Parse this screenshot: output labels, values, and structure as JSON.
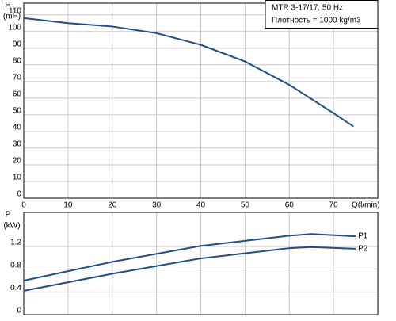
{
  "chart_data": [
    {
      "type": "line",
      "ylabel": [
        "H",
        "(mH)"
      ],
      "xlabel": "Q(l/min)",
      "annotations": [
        "MTR 3-17/17, 50 Hz",
        "Плотность = 1000 kg/m3"
      ],
      "x": [
        0,
        10,
        20,
        30,
        40,
        50,
        60,
        70,
        74.5
      ],
      "series": [
        {
          "color": "#1f4e8c",
          "values": [
            108,
            105,
            103,
            99,
            92,
            82,
            68,
            51,
            43
          ]
        }
      ],
      "xlim": [
        0,
        80
      ],
      "ylim": [
        0,
        117
      ],
      "xticks": [
        0,
        10,
        20,
        30,
        40,
        50,
        60,
        70
      ],
      "yticks": [
        0,
        10,
        20,
        30,
        40,
        50,
        60,
        70,
        80,
        90,
        100,
        110
      ],
      "grid": true,
      "xtick_labels": true
    },
    {
      "type": "line",
      "ylabel": [
        "P",
        "(kW)"
      ],
      "x": [
        0,
        20,
        40,
        60,
        65,
        75
      ],
      "series": [
        {
          "name": "P1",
          "color": "#1f4e8c",
          "values": [
            0.6,
            0.93,
            1.21,
            1.39,
            1.42,
            1.38
          ]
        },
        {
          "name": "P2",
          "color": "#1f4e8c",
          "values": [
            0.42,
            0.72,
            0.99,
            1.17,
            1.19,
            1.16
          ]
        }
      ],
      "xlim": [
        0,
        80
      ],
      "ylim": [
        0,
        1.8
      ],
      "xticks": [
        0,
        10,
        20,
        30,
        40,
        50,
        60,
        70
      ],
      "yticks": [
        0,
        0.4,
        0.8,
        1.2
      ],
      "grid": true,
      "xtick_labels": false
    }
  ]
}
